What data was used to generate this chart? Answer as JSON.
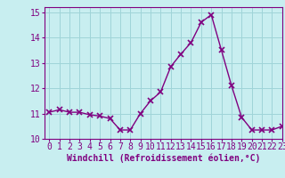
{
  "x": [
    0,
    1,
    2,
    3,
    4,
    5,
    6,
    7,
    8,
    9,
    10,
    11,
    12,
    13,
    14,
    15,
    16,
    17,
    18,
    19,
    20,
    21,
    22,
    23
  ],
  "y": [
    11.05,
    11.15,
    11.05,
    11.05,
    10.95,
    10.9,
    10.8,
    10.35,
    10.35,
    11.0,
    11.5,
    11.85,
    12.85,
    13.35,
    13.8,
    14.6,
    14.9,
    13.5,
    12.1,
    10.85,
    10.35,
    10.35,
    10.35,
    10.5
  ],
  "line_color": "#800080",
  "marker": "x",
  "marker_size": 4,
  "bg_color": "#c8eef0",
  "grid_color": "#9fd4d8",
  "xlabel": "Windchill (Refroidissement éolien,°C)",
  "xlim": [
    -0.5,
    23.0
  ],
  "ylim": [
    10.0,
    15.2
  ],
  "yticks": [
    10,
    11,
    12,
    13,
    14,
    15
  ],
  "xticks": [
    0,
    1,
    2,
    3,
    4,
    5,
    6,
    7,
    8,
    9,
    10,
    11,
    12,
    13,
    14,
    15,
    16,
    17,
    18,
    19,
    20,
    21,
    22,
    23
  ],
  "tick_color": "#800080",
  "label_color": "#800080",
  "linewidth": 1.0,
  "tick_fontsize": 7.0,
  "xlabel_fontsize": 7.0
}
